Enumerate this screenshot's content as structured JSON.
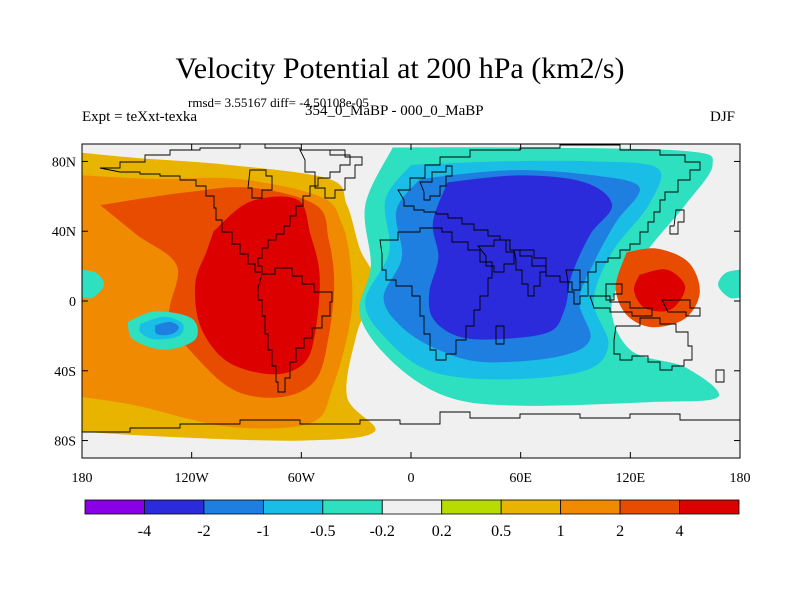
{
  "chart_data": {
    "type": "heatmap",
    "title": "Velocity Potential at 200 hPa (km2/s)",
    "stats": "rmsd= 3.55167 diff= -4.50108e-05",
    "left_label": "Expt = teXxt-texka",
    "center_label": "354_0_MaBP - 000_0_MaBP",
    "right_label": "DJF",
    "x_ticks": [
      "180",
      "120W",
      "60W",
      "0",
      "60E",
      "120E",
      "180"
    ],
    "x_tick_values": [
      -180,
      -120,
      -60,
      0,
      60,
      120,
      180
    ],
    "y_ticks": [
      "80N",
      "40N",
      "0",
      "40S",
      "80S"
    ],
    "y_tick_values": [
      80,
      40,
      0,
      -40,
      -80
    ],
    "xlim": [
      -180,
      180
    ],
    "ylim": [
      -90,
      90
    ],
    "colorbar": {
      "levels": [
        "-4",
        "-2",
        "-1",
        "-0.5",
        "-0.2",
        "0.2",
        "0.5",
        "1",
        "2",
        "4"
      ],
      "colors": [
        "#8a00e6",
        "#2b2bdb",
        "#1e7fe0",
        "#19bde6",
        "#2ee0c0",
        "#f0f0f0",
        "#b8dc00",
        "#e8b400",
        "#f08a00",
        "#e84c00",
        "#dc0000"
      ]
    },
    "contours": [
      {
        "level": 0.5,
        "points": [
          [
            -180,
            85
          ],
          [
            -150,
            82
          ],
          [
            -100,
            78
          ],
          [
            -45,
            70
          ],
          [
            -35,
            55
          ],
          [
            -28,
            30
          ],
          [
            -20,
            10
          ],
          [
            -30,
            -20
          ],
          [
            -35,
            -55
          ],
          [
            -20,
            -75
          ],
          [
            -60,
            -80
          ],
          [
            -130,
            -78
          ],
          [
            -180,
            -75
          ]
        ]
      },
      {
        "level": 1,
        "points": [
          [
            -180,
            72
          ],
          [
            -140,
            70
          ],
          [
            -95,
            70
          ],
          [
            -50,
            60
          ],
          [
            -38,
            45
          ],
          [
            -33,
            20
          ],
          [
            -33,
            -10
          ],
          [
            -43,
            -50
          ],
          [
            -55,
            -70
          ],
          [
            -100,
            -72
          ],
          [
            -150,
            -60
          ],
          [
            -180,
            -55
          ]
        ]
      },
      {
        "level": 2,
        "points": [
          [
            -170,
            55
          ],
          [
            -125,
            62
          ],
          [
            -88,
            65
          ],
          [
            -52,
            55
          ],
          [
            -45,
            35
          ],
          [
            -42,
            10
          ],
          [
            -45,
            -20
          ],
          [
            -52,
            -45
          ],
          [
            -70,
            -55
          ],
          [
            -95,
            -52
          ],
          [
            -115,
            -35
          ],
          [
            -132,
            -10
          ],
          [
            -128,
            20
          ],
          [
            -150,
            38
          ],
          [
            -170,
            55
          ]
        ]
      },
      {
        "level": 4,
        "points": [
          [
            -108,
            40
          ],
          [
            -88,
            57
          ],
          [
            -62,
            58
          ],
          [
            -55,
            38
          ],
          [
            -50,
            15
          ],
          [
            -52,
            -15
          ],
          [
            -58,
            -35
          ],
          [
            -75,
            -42
          ],
          [
            -100,
            -35
          ],
          [
            -115,
            -15
          ],
          [
            -118,
            10
          ],
          [
            -112,
            28
          ],
          [
            -108,
            40
          ]
        ]
      },
      {
        "level": -0.5,
        "points": [
          [
            -10,
            88
          ],
          [
            60,
            88
          ],
          [
            150,
            86
          ],
          [
            165,
            78
          ],
          [
            150,
            55
          ],
          [
            130,
            30
          ],
          [
            110,
            0
          ],
          [
            120,
            -28
          ],
          [
            150,
            -38
          ],
          [
            168,
            -55
          ],
          [
            130,
            -58
          ],
          [
            60,
            -60
          ],
          [
            20,
            -55
          ],
          [
            -10,
            -35
          ],
          [
            -28,
            -8
          ],
          [
            -22,
            20
          ],
          [
            -25,
            55
          ],
          [
            -10,
            88
          ]
        ]
      },
      {
        "level": -1,
        "points": [
          [
            0,
            78
          ],
          [
            50,
            80
          ],
          [
            100,
            80
          ],
          [
            135,
            76
          ],
          [
            130,
            55
          ],
          [
            110,
            28
          ],
          [
            100,
            0
          ],
          [
            108,
            -25
          ],
          [
            95,
            -40
          ],
          [
            50,
            -45
          ],
          [
            10,
            -40
          ],
          [
            -15,
            -20
          ],
          [
            -25,
            0
          ],
          [
            -12,
            28
          ],
          [
            -14,
            58
          ],
          [
            0,
            78
          ]
        ]
      },
      {
        "level": -2,
        "points": [
          [
            5,
            70
          ],
          [
            55,
            75
          ],
          [
            100,
            72
          ],
          [
            125,
            65
          ],
          [
            112,
            45
          ],
          [
            100,
            22
          ],
          [
            92,
            0
          ],
          [
            98,
            -22
          ],
          [
            80,
            -32
          ],
          [
            40,
            -35
          ],
          [
            15,
            -28
          ],
          [
            -5,
            -15
          ],
          [
            -15,
            2
          ],
          [
            -5,
            25
          ],
          [
            -8,
            52
          ],
          [
            5,
            70
          ]
        ]
      },
      {
        "level": -4,
        "points": [
          [
            20,
            68
          ],
          [
            60,
            72
          ],
          [
            95,
            68
          ],
          [
            110,
            55
          ],
          [
            98,
            38
          ],
          [
            88,
            15
          ],
          [
            84,
            -5
          ],
          [
            75,
            -18
          ],
          [
            45,
            -22
          ],
          [
            25,
            -20
          ],
          [
            12,
            -10
          ],
          [
            10,
            5
          ],
          [
            15,
            25
          ],
          [
            12,
            45
          ],
          [
            20,
            68
          ]
        ]
      },
      {
        "level": 2,
        "points": [
          [
            118,
            28
          ],
          [
            135,
            30
          ],
          [
            152,
            22
          ],
          [
            158,
            5
          ],
          [
            150,
            -10
          ],
          [
            132,
            -15
          ],
          [
            118,
            -8
          ],
          [
            112,
            8
          ],
          [
            118,
            28
          ]
        ]
      },
      {
        "level": 4,
        "points": [
          [
            125,
            15
          ],
          [
            140,
            18
          ],
          [
            150,
            8
          ],
          [
            142,
            -5
          ],
          [
            128,
            -4
          ],
          [
            122,
            6
          ],
          [
            125,
            15
          ]
        ]
      },
      {
        "level": -0.5,
        "points": [
          [
            -155,
            -12
          ],
          [
            -140,
            -6
          ],
          [
            -120,
            -10
          ],
          [
            -118,
            -22
          ],
          [
            -135,
            -28
          ],
          [
            -152,
            -22
          ],
          [
            -155,
            -12
          ]
        ]
      },
      {
        "level": -1,
        "points": [
          [
            -148,
            -13
          ],
          [
            -135,
            -9
          ],
          [
            -125,
            -13
          ],
          [
            -127,
            -20
          ],
          [
            -140,
            -22
          ],
          [
            -148,
            -18
          ],
          [
            -148,
            -13
          ]
        ]
      },
      {
        "level": -2,
        "points": [
          [
            -140,
            -14
          ],
          [
            -132,
            -12
          ],
          [
            -127,
            -15
          ],
          [
            -131,
            -19
          ],
          [
            -139,
            -19
          ],
          [
            -140,
            -14
          ]
        ]
      },
      {
        "level": -0.5,
        "points": [
          [
            -180,
            18
          ],
          [
            -172,
            16
          ],
          [
            -168,
            9
          ],
          [
            -174,
            2
          ],
          [
            -180,
            2
          ]
        ]
      },
      {
        "level": -0.5,
        "points": [
          [
            180,
            18
          ],
          [
            172,
            16
          ],
          [
            168,
            9
          ],
          [
            174,
            2
          ],
          [
            180,
            2
          ]
        ]
      }
    ],
    "basemap": "continental outlines (coarse grid)"
  }
}
